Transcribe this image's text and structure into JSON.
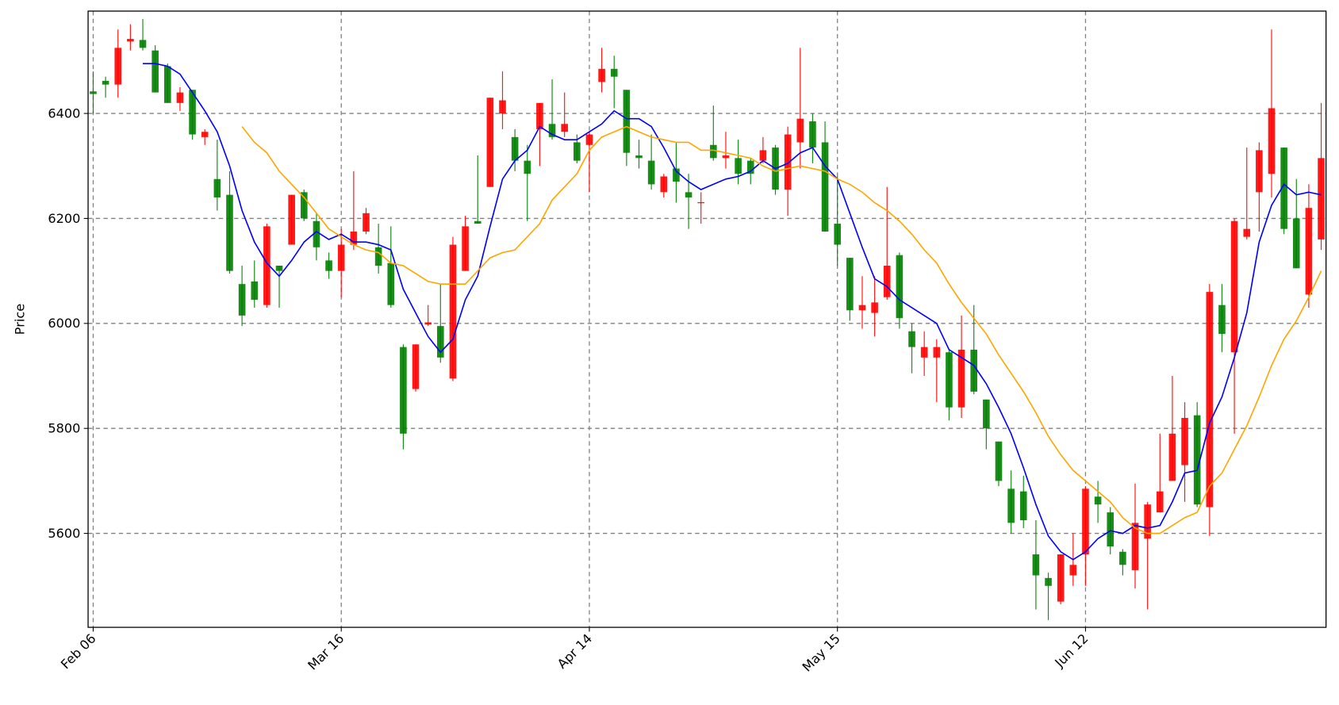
{
  "chart_data": {
    "type": "candlestick",
    "ylabel": "Price",
    "categories": [
      "Feb 06",
      null,
      null,
      null,
      null,
      null,
      null,
      null,
      null,
      null,
      null,
      null,
      null,
      null,
      null,
      null,
      null,
      null,
      null,
      null,
      "Mar 16",
      null,
      null,
      null,
      null,
      null,
      null,
      null,
      null,
      null,
      null,
      null,
      null,
      null,
      null,
      null,
      null,
      null,
      null,
      null,
      "Apr 14",
      null,
      null,
      null,
      null,
      null,
      null,
      null,
      null,
      null,
      null,
      null,
      null,
      null,
      null,
      null,
      null,
      null,
      null,
      null,
      "May 15",
      null,
      null,
      null,
      null,
      null,
      null,
      null,
      null,
      null,
      null,
      null,
      null,
      null,
      null,
      null,
      null,
      null,
      null,
      null,
      "Jun 12",
      null,
      null,
      null,
      null,
      null,
      null,
      null,
      null,
      null,
      null,
      null,
      null,
      null,
      null,
      null,
      null,
      null,
      null,
      null
    ],
    "open": [
      6442,
      6462,
      6455,
      6537,
      6540,
      6520,
      6490,
      6420,
      6445,
      6355,
      6275,
      6245,
      6075,
      6080,
      6035,
      6110,
      6150,
      6250,
      6195,
      6120,
      6100,
      6150,
      6175,
      6145,
      6115,
      5955,
      5875,
      5998,
      5995,
      5895,
      6100,
      6195,
      6260,
      6400,
      6355,
      6310,
      6370,
      6380,
      6365,
      6345,
      6340,
      6460,
      6485,
      6445,
      6320,
      6310,
      6250,
      6295,
      6250,
      6229,
      6340,
      6315,
      6315,
      6310,
      6310,
      6335,
      6255,
      6345,
      6385,
      6345,
      6190,
      6125,
      6025,
      6020,
      6050,
      6130,
      5985,
      5935,
      5935,
      5945,
      5840,
      5950,
      5855,
      5775,
      5685,
      5680,
      5560,
      5515,
      5470,
      5520,
      5560,
      5670,
      5640,
      5565,
      5530,
      5590,
      5640,
      5700,
      5730,
      5825,
      5650,
      6035,
      5945,
      6165,
      6250,
      6285,
      6335,
      6200,
      6055,
      6160
    ],
    "high": [
      6480,
      6470,
      6560,
      6570,
      6580,
      6530,
      6495,
      6450,
      6445,
      6370,
      6350,
      6290,
      6110,
      6120,
      6190,
      6110,
      6245,
      6255,
      6210,
      6135,
      6180,
      6290,
      6220,
      6190,
      6185,
      5960,
      5960,
      6035,
      6075,
      6165,
      6205,
      6320,
      6430,
      6480,
      6370,
      6340,
      6420,
      6465,
      6440,
      6360,
      6365,
      6525,
      6510,
      6445,
      6350,
      6360,
      6285,
      6345,
      6285,
      6250,
      6415,
      6365,
      6350,
      6315,
      6355,
      6340,
      6375,
      6525,
      6400,
      6385,
      6280,
      6125,
      6090,
      6090,
      6260,
      6135,
      6000,
      5985,
      5970,
      5950,
      6015,
      6035,
      5855,
      5775,
      5720,
      5710,
      5625,
      5525,
      5560,
      5600,
      5690,
      5700,
      5650,
      5570,
      5695,
      5660,
      5790,
      5900,
      5850,
      5850,
      6075,
      6075,
      6200,
      6335,
      6345,
      6560,
      6335,
      6275,
      6265,
      6420
    ],
    "low": [
      6400,
      6430,
      6430,
      6520,
      6520,
      6440,
      6420,
      6405,
      6350,
      6340,
      6215,
      6095,
      5995,
      6030,
      6030,
      6030,
      6150,
      6195,
      6120,
      6085,
      6050,
      6140,
      6170,
      6095,
      6030,
      5760,
      5870,
      5995,
      5925,
      5890,
      6100,
      6190,
      6260,
      6370,
      6290,
      6195,
      6300,
      6350,
      6355,
      6305,
      6250,
      6440,
      6410,
      6300,
      6295,
      6255,
      6240,
      6230,
      6180,
      6190,
      6310,
      6295,
      6265,
      6265,
      6305,
      6245,
      6205,
      6295,
      6305,
      6175,
      6110,
      6005,
      5990,
      5975,
      6045,
      5990,
      5905,
      5900,
      5850,
      5815,
      5820,
      5865,
      5760,
      5690,
      5600,
      5610,
      5455,
      5435,
      5465,
      5500,
      5500,
      5620,
      5560,
      5520,
      5495,
      5455,
      5640,
      5700,
      5660,
      5650,
      5595,
      5945,
      5790,
      6160,
      6175,
      6240,
      6170,
      6105,
      6030,
      6140
    ],
    "close": [
      6437,
      6455,
      6525,
      6542,
      6525,
      6440,
      6420,
      6440,
      6360,
      6365,
      6240,
      6100,
      6015,
      6045,
      6185,
      6100,
      6245,
      6200,
      6145,
      6100,
      6150,
      6175,
      6210,
      6110,
      6035,
      5790,
      5960,
      6002,
      5935,
      6150,
      6185,
      6190,
      6430,
      6425,
      6310,
      6285,
      6420,
      6355,
      6380,
      6310,
      6360,
      6485,
      6470,
      6325,
      6315,
      6265,
      6280,
      6270,
      6240,
      6231,
      6315,
      6320,
      6285,
      6285,
      6330,
      6255,
      6360,
      6390,
      6335,
      6175,
      6150,
      6025,
      6035,
      6040,
      6110,
      6010,
      5955,
      5955,
      5955,
      5840,
      5950,
      5870,
      5800,
      5700,
      5620,
      5625,
      5520,
      5500,
      5560,
      5540,
      5685,
      5655,
      5575,
      5540,
      5620,
      5655,
      5680,
      5790,
      5820,
      5655,
      6060,
      5980,
      6195,
      6180,
      6330,
      6410,
      6180,
      6105,
      6220,
      6315
    ],
    "up_color": "#ff0000",
    "down_color": "#008000",
    "series": [
      {
        "color": "#0000ff",
        "values": [
          null,
          null,
          null,
          null,
          6495,
          6495,
          6490,
          6475,
          6440,
          6405,
          6365,
          6300,
          6215,
          6155,
          6115,
          6090,
          6120,
          6155,
          6175,
          6160,
          6170,
          6155,
          6155,
          6150,
          6140,
          6065,
          6020,
          5975,
          5945,
          5970,
          6045,
          6090,
          6185,
          6275,
          6310,
          6330,
          6375,
          6360,
          6350,
          6350,
          6365,
          6380,
          6405,
          6390,
          6390,
          6375,
          6335,
          6290,
          6270,
          6255,
          6265,
          6275,
          6280,
          6290,
          6310,
          6295,
          6305,
          6325,
          6335,
          6300,
          6275,
          6210,
          6145,
          6085,
          6070,
          6045,
          6030,
          6015,
          6000,
          5950,
          5935,
          5920,
          5885,
          5840,
          5790,
          5725,
          5655,
          5595,
          5565,
          5550,
          5565,
          5590,
          5605,
          5600,
          5615,
          5610,
          5615,
          5660,
          5715,
          5720,
          5810,
          5860,
          5935,
          6020,
          6155,
          6225,
          6265,
          6245,
          6250,
          6245
        ]
      },
      {
        "color": "#ffa500",
        "values": [
          null,
          null,
          null,
          null,
          null,
          null,
          null,
          null,
          null,
          null,
          null,
          null,
          6375,
          6345,
          6325,
          6290,
          6265,
          6240,
          6210,
          6180,
          6165,
          6150,
          6140,
          6135,
          6115,
          6110,
          6095,
          6080,
          6075,
          6075,
          6075,
          6100,
          6125,
          6135,
          6140,
          6165,
          6190,
          6235,
          6260,
          6285,
          6330,
          6355,
          6365,
          6375,
          6365,
          6355,
          6350,
          6345,
          6345,
          6330,
          6330,
          6325,
          6320,
          6315,
          6300,
          6290,
          6295,
          6300,
          6295,
          6290,
          6275,
          6265,
          6250,
          6230,
          6215,
          6195,
          6170,
          6140,
          6115,
          6075,
          6040,
          6010,
          5980,
          5940,
          5905,
          5870,
          5830,
          5785,
          5750,
          5720,
          5700,
          5680,
          5660,
          5630,
          5610,
          5600,
          5600,
          5615,
          5630,
          5640,
          5690,
          5715,
          5760,
          5805,
          5860,
          5920,
          5970,
          6005,
          6050,
          6100
        ]
      }
    ],
    "ylim": [
      5421,
      6595
    ],
    "yticks": [
      5600,
      5800,
      6000,
      6200,
      6400
    ],
    "grid": true
  }
}
